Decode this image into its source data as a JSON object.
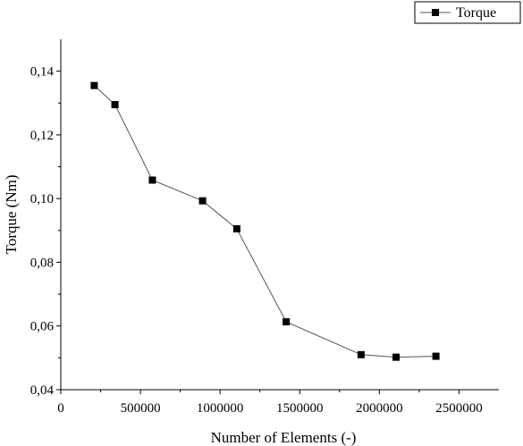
{
  "chart_data": {
    "type": "line",
    "title": "",
    "xlabel": "Number of Elements (-)",
    "ylabel": "Torque (Nm)",
    "xlim": [
      0,
      2750000
    ],
    "ylim": [
      0.04,
      0.15
    ],
    "x_ticks": [
      0,
      500000,
      1000000,
      1500000,
      2000000,
      2500000
    ],
    "x_tick_labels": [
      "0",
      "500000",
      "1000000",
      "1500000",
      "2000000",
      "2500000"
    ],
    "y_ticks": [
      0.04,
      0.06,
      0.08,
      0.1,
      0.12,
      0.14
    ],
    "y_tick_labels": [
      "0,04",
      "0,06",
      "0,08",
      "0,10",
      "0,12",
      "0,14"
    ],
    "grid": false,
    "legend_position": "top-right",
    "series": [
      {
        "name": "Torque",
        "marker": "square",
        "color": "#000000",
        "line_color": "#555555",
        "x": [
          210000,
          340000,
          575000,
          890000,
          1105000,
          1415000,
          1885000,
          2105000,
          2355000
        ],
        "y": [
          0.1355,
          0.1295,
          0.1058,
          0.0993,
          0.0905,
          0.0613,
          0.051,
          0.0502,
          0.0505
        ]
      }
    ]
  }
}
